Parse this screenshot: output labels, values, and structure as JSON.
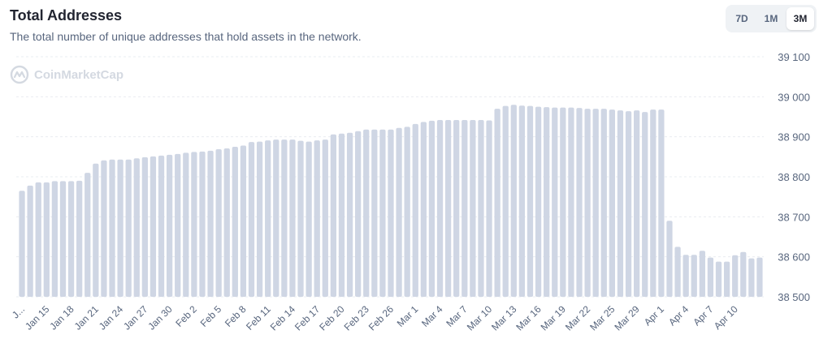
{
  "header": {
    "title": "Total Addresses",
    "subtitle": "The total number of unique addresses that hold assets in the network."
  },
  "range_tabs": [
    {
      "label": "7D",
      "active": false
    },
    {
      "label": "1M",
      "active": false
    },
    {
      "label": "3M",
      "active": true
    }
  ],
  "watermark": {
    "text": "CoinMarketCap",
    "icon": "coinmarketcap-logo-icon"
  },
  "colors": {
    "bar": "#cfd6e4",
    "grid": "#e9ecf1",
    "tick": "#58667e"
  },
  "chart_data": {
    "type": "bar",
    "title": "Total Addresses",
    "ylim": [
      38500,
      39100
    ],
    "yticks": [
      38500,
      38600,
      38700,
      38800,
      38900,
      39000,
      39100
    ],
    "ytick_labels": [
      "38 500",
      "38 600",
      "38 700",
      "38 800",
      "38 900",
      "39 000",
      "39 100"
    ],
    "grid": true,
    "x_start_date": "2024-01-12",
    "x_tick_labels": [
      {
        "index": 0,
        "label": "J..."
      },
      {
        "index": 3,
        "label": "Jan 15"
      },
      {
        "index": 6,
        "label": "Jan 18"
      },
      {
        "index": 9,
        "label": "Jan 21"
      },
      {
        "index": 12,
        "label": "Jan 24"
      },
      {
        "index": 15,
        "label": "Jan 27"
      },
      {
        "index": 18,
        "label": "Jan 30"
      },
      {
        "index": 21,
        "label": "Feb 2"
      },
      {
        "index": 24,
        "label": "Feb 5"
      },
      {
        "index": 27,
        "label": "Feb 8"
      },
      {
        "index": 30,
        "label": "Feb 11"
      },
      {
        "index": 33,
        "label": "Feb 14"
      },
      {
        "index": 36,
        "label": "Feb 17"
      },
      {
        "index": 39,
        "label": "Feb 20"
      },
      {
        "index": 42,
        "label": "Feb 23"
      },
      {
        "index": 45,
        "label": "Feb 26"
      },
      {
        "index": 48,
        "label": "Mar 1"
      },
      {
        "index": 51,
        "label": "Mar 4"
      },
      {
        "index": 54,
        "label": "Mar 7"
      },
      {
        "index": 57,
        "label": "Mar 10"
      },
      {
        "index": 60,
        "label": "Mar 13"
      },
      {
        "index": 63,
        "label": "Mar 16"
      },
      {
        "index": 66,
        "label": "Mar 19"
      },
      {
        "index": 69,
        "label": "Mar 22"
      },
      {
        "index": 72,
        "label": "Mar 25"
      },
      {
        "index": 75,
        "label": "Mar 29"
      },
      {
        "index": 78,
        "label": "Apr 1"
      },
      {
        "index": 81,
        "label": "Apr 4"
      },
      {
        "index": 84,
        "label": "Apr 7"
      },
      {
        "index": 87,
        "label": "Apr 10"
      }
    ],
    "values": [
      38765,
      38778,
      38786,
      38786,
      38789,
      38789,
      38789,
      38790,
      38810,
      38833,
      38841,
      38843,
      38843,
      38843,
      38846,
      38849,
      38851,
      38853,
      38855,
      38857,
      38860,
      38862,
      38863,
      38865,
      38869,
      38871,
      38875,
      38878,
      38887,
      38888,
      38891,
      38893,
      38893,
      38893,
      38890,
      38888,
      38891,
      38893,
      38906,
      38908,
      38910,
      38914,
      38918,
      38918,
      38918,
      38918,
      38922,
      38925,
      38932,
      38937,
      38940,
      38942,
      38942,
      38942,
      38942,
      38942,
      38942,
      38941,
      38970,
      38977,
      38980,
      38978,
      38977,
      38975,
      38974,
      38973,
      38973,
      38973,
      38972,
      38970,
      38970,
      38970,
      38968,
      38966,
      38964,
      38966,
      38962,
      38968,
      38968,
      38690,
      38625,
      38605,
      38605,
      38615,
      38598,
      38588,
      38588,
      38604,
      38612,
      38596,
      38598
    ]
  }
}
